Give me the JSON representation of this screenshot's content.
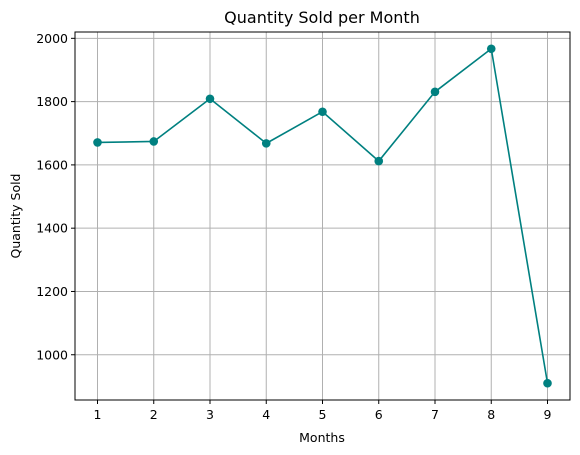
{
  "chart_data": {
    "type": "line",
    "title": "Quantity Sold per Month",
    "xlabel": "Months",
    "ylabel": "Quantity Sold",
    "x": [
      1,
      2,
      3,
      4,
      5,
      6,
      7,
      8,
      9
    ],
    "series": [
      {
        "values": [
          1671,
          1674,
          1809,
          1668,
          1768,
          1612,
          1831,
          1967,
          910
        ]
      }
    ],
    "xlim": [
      0.6,
      9.4
    ],
    "ylim": [
      857,
      2020
    ],
    "xticks": [
      1,
      2,
      3,
      4,
      5,
      6,
      7,
      8,
      9
    ],
    "yticks": [
      1000,
      1200,
      1400,
      1600,
      1800,
      2000
    ],
    "grid": true,
    "line_color": "#008080",
    "marker": "circle"
  }
}
